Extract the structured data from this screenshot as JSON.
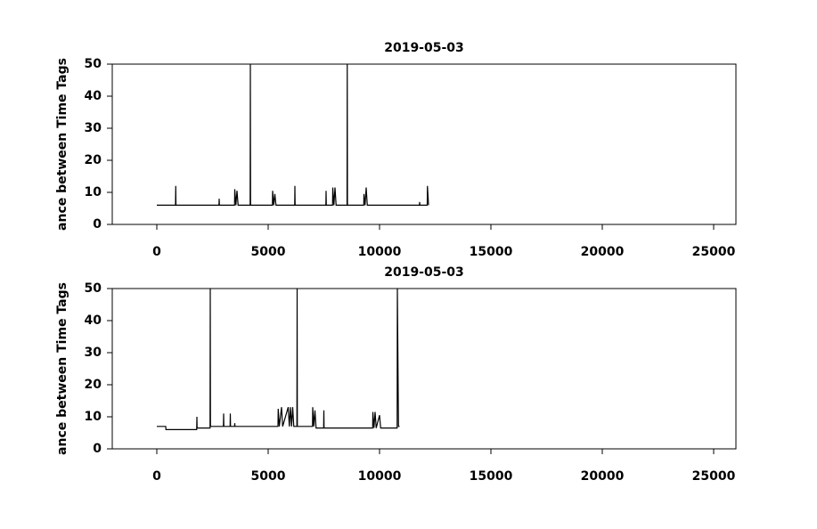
{
  "chart_data": [
    {
      "type": "line",
      "title": "2019-05-03",
      "y_label": "ance between Time Tags",
      "xlim": [
        -2000,
        26000
      ],
      "xticks": [
        0,
        5000,
        10000,
        15000,
        20000,
        25000
      ],
      "ylim": [
        0,
        50
      ],
      "yticks": [
        0,
        10,
        20,
        30,
        40,
        50
      ],
      "series": [
        {
          "color": "#000000",
          "x": [
            0,
            840,
            850,
            860,
            2000,
            2790,
            2800,
            2810,
            3490,
            3500,
            3550,
            3600,
            3650,
            4190,
            4200,
            4210,
            5190,
            5200,
            5250,
            5300,
            5350,
            6190,
            6200,
            6210,
            7590,
            7600,
            7610,
            7890,
            7900,
            7950,
            8000,
            8050,
            8540,
            8550,
            8560,
            9290,
            9300,
            9350,
            9400,
            9450,
            11790,
            11800,
            11810,
            12140,
            12150,
            12200
          ],
          "values": [
            6,
            6,
            12,
            6,
            6,
            6,
            8,
            6,
            6,
            11,
            6,
            10.5,
            6,
            6,
            50,
            6,
            6,
            10.5,
            6,
            9.5,
            6,
            6,
            12,
            6,
            6,
            10.5,
            6,
            6,
            11.5,
            6,
            11.5,
            6,
            6,
            50,
            6,
            6,
            9.5,
            6,
            11.5,
            6,
            6,
            7,
            6,
            6,
            12,
            6
          ]
        }
      ]
    },
    {
      "type": "line",
      "title": "2019-05-03",
      "y_label": "ance between Time Tags",
      "xlim": [
        -2000,
        26000
      ],
      "xticks": [
        0,
        5000,
        10000,
        15000,
        20000,
        25000
      ],
      "ylim": [
        0,
        50
      ],
      "yticks": [
        0,
        10,
        20,
        30,
        40,
        50
      ],
      "series": [
        {
          "color": "#000000",
          "x": [
            0,
            400,
            410,
            1790,
            1800,
            1810,
            2390,
            2400,
            2410,
            2990,
            3000,
            3010,
            3290,
            3300,
            3310,
            3490,
            3500,
            3510,
            5440,
            5450,
            5500,
            5600,
            5650,
            5900,
            5950,
            6000,
            6050,
            6100,
            6150,
            6290,
            6300,
            6310,
            6990,
            7000,
            7050,
            7100,
            7150,
            7490,
            7500,
            7510,
            9690,
            9700,
            9750,
            9800,
            9850,
            10000,
            10050,
            10790,
            10800,
            10850,
            10900
          ],
          "values": [
            7,
            7,
            6,
            6,
            10,
            6.5,
            6.5,
            50,
            7,
            7,
            11,
            7,
            7,
            11,
            7,
            7,
            8,
            7,
            7,
            12.5,
            7,
            13,
            7,
            13,
            7,
            13,
            7,
            13,
            7,
            7,
            50,
            7,
            7,
            13,
            7,
            12,
            6.5,
            6.5,
            12,
            6.5,
            6.5,
            11.5,
            6.5,
            11.5,
            6.5,
            10.5,
            6.5,
            6.5,
            50,
            7,
            7
          ]
        }
      ]
    }
  ]
}
